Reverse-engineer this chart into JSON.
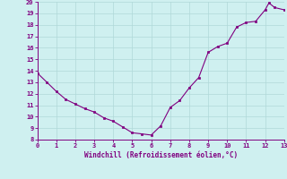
{
  "x": [
    0,
    0.5,
    1,
    1.5,
    2,
    2.5,
    3,
    3.5,
    4,
    4.5,
    5,
    5.5,
    6,
    6.5,
    7,
    7.5,
    8,
    8.5,
    9,
    9.5,
    10,
    10.5,
    11,
    11.5,
    12,
    12.2,
    12.5,
    13
  ],
  "y": [
    13.8,
    13.0,
    12.2,
    11.5,
    11.1,
    10.7,
    10.4,
    9.9,
    9.6,
    9.1,
    8.6,
    8.5,
    8.4,
    9.2,
    10.8,
    11.4,
    12.5,
    13.4,
    15.6,
    16.1,
    16.4,
    17.8,
    18.2,
    18.3,
    19.3,
    19.9,
    19.5,
    19.3
  ],
  "xlim": [
    0,
    13
  ],
  "ylim": [
    8,
    20
  ],
  "xticks": [
    0,
    1,
    2,
    3,
    4,
    5,
    6,
    7,
    8,
    9,
    10,
    11,
    12,
    13
  ],
  "yticks": [
    8,
    9,
    10,
    11,
    12,
    13,
    14,
    15,
    16,
    17,
    18,
    19,
    20
  ],
  "xlabel": "Windchill (Refroidissement éolien,°C)",
  "line_color": "#800080",
  "marker_color": "#800080",
  "bg_color": "#cff0f0",
  "grid_color": "#b0d8d8",
  "axis_color": "#800080",
  "tick_color": "#800080",
  "label_color": "#800080",
  "figsize": [
    3.2,
    2.0
  ],
  "dpi": 100
}
